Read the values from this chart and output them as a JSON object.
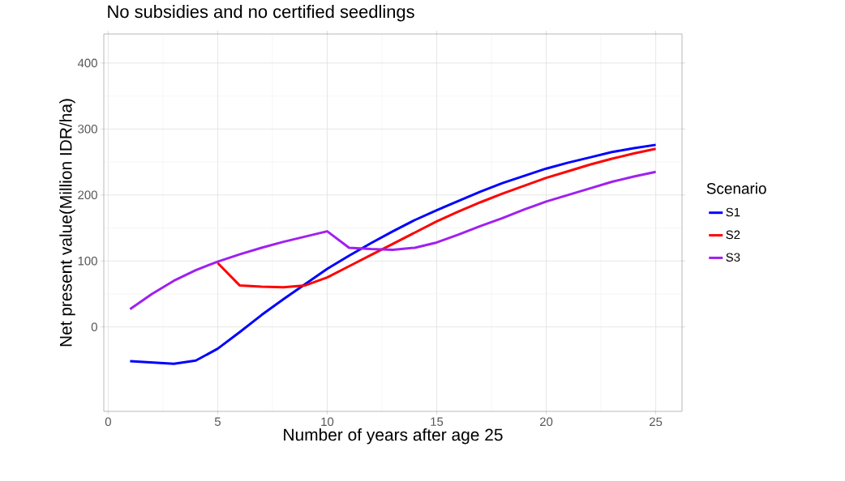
{
  "chart_data": {
    "type": "line",
    "title": "No subsidies and no certified seedlings",
    "xlabel": "Number of years after age 25",
    "ylabel": "Net present value(Million IDR/ha)",
    "legend_title": "Scenario",
    "x": [
      1,
      2,
      3,
      4,
      5,
      6,
      7,
      8,
      9,
      10,
      11,
      12,
      13,
      14,
      15,
      16,
      17,
      18,
      19,
      20,
      21,
      22,
      23,
      24,
      25
    ],
    "series": [
      {
        "name": "S1",
        "color": "#0000ff",
        "values": [
          -52,
          -54,
          -56,
          -51,
          -33,
          -8,
          18,
          42,
          65,
          88,
          108,
          127,
          145,
          162,
          177,
          191,
          205,
          218,
          229,
          240,
          249,
          257,
          265,
          271,
          276
        ]
      },
      {
        "name": "S2",
        "color": "#ff0000",
        "values": [
          null,
          null,
          null,
          null,
          97,
          63,
          61,
          60,
          63,
          75,
          92,
          109,
          126,
          143,
          160,
          175,
          189,
          202,
          214,
          226,
          236,
          246,
          255,
          263,
          270
        ]
      },
      {
        "name": "S3",
        "color": "#a020f0",
        "values": [
          27,
          50,
          70,
          86,
          99,
          110,
          120,
          129,
          137,
          145,
          120,
          118,
          117,
          120,
          128,
          140,
          153,
          165,
          178,
          190,
          200,
          210,
          220,
          228,
          235
        ]
      }
    ],
    "xlim": [
      -0.2,
      26.2
    ],
    "ylim": [
      -128,
      444
    ],
    "xticks": [
      0,
      5,
      10,
      15,
      20,
      25
    ],
    "yticks": [
      0,
      100,
      200,
      300,
      400
    ],
    "grid": true,
    "legend": "right",
    "marker": "none",
    "line_style": "solid"
  }
}
